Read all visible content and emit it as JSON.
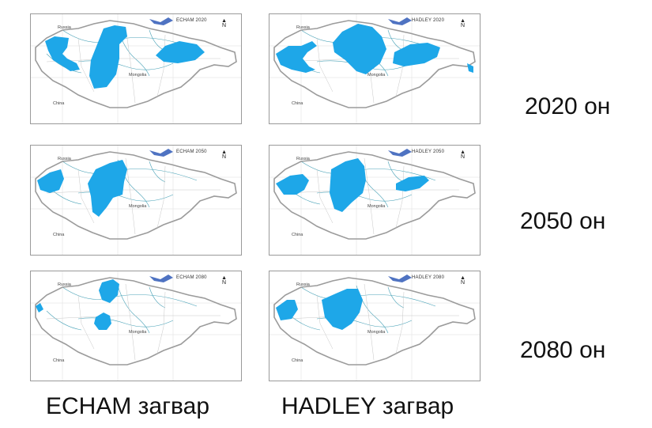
{
  "colors": {
    "flood_fill": "#1ea7e8",
    "border": "#9b9b9b",
    "rivers": "#4ba3b8",
    "lake": "#4f73c2"
  },
  "panels": [
    {
      "title": "ECHAM 2020",
      "russia": "Russia",
      "mongolia": "Mongolia",
      "china": "China"
    },
    {
      "title": "HADLEY 2020",
      "russia": "Russia",
      "mongolia": "Mongolia",
      "china": "China"
    },
    {
      "title": "ECHAM 2050",
      "russia": "Russia",
      "mongolia": "Mongolia",
      "china": "China"
    },
    {
      "title": "HADLEY 2050",
      "russia": "Russia",
      "mongolia": "Mongolia",
      "china": "China"
    },
    {
      "title": "ECHAM 2080",
      "russia": "Russia",
      "mongolia": "Mongolia",
      "china": "China"
    },
    {
      "title": "HADLEY 2080",
      "russia": "Russia",
      "mongolia": "Mongolia",
      "china": "China"
    }
  ],
  "years": [
    "2020 он",
    "2050 он",
    "2080 он"
  ],
  "models": [
    "ECHAM загвар",
    "HADLEY загвар"
  ]
}
